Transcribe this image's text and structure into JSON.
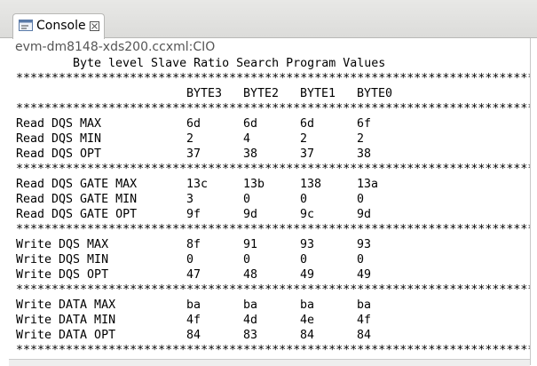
{
  "tab": {
    "title": "Console"
  },
  "console_name": "evm-dm8148-xds200.ccxml:CIO",
  "output": {
    "title": "Byte level Slave Ratio Search Program Values",
    "separator": "*************************************************************************",
    "columns": [
      "BYTE3",
      "BYTE2",
      "BYTE1",
      "BYTE0"
    ],
    "groups": [
      {
        "rows": [
          {
            "label": "Read DQS MAX",
            "values": [
              "6d",
              "6d",
              "6d",
              "6f"
            ]
          },
          {
            "label": "Read DQS MIN",
            "values": [
              "2",
              "4",
              "2",
              "2"
            ]
          },
          {
            "label": "Read DQS OPT",
            "values": [
              "37",
              "38",
              "37",
              "38"
            ]
          }
        ]
      },
      {
        "rows": [
          {
            "label": "Read DQS GATE MAX",
            "values": [
              "13c",
              "13b",
              "138",
              "13a"
            ]
          },
          {
            "label": "Read DQS GATE MIN",
            "values": [
              "3",
              "0",
              "0",
              "0"
            ]
          },
          {
            "label": "Read DQS GATE OPT",
            "values": [
              "9f",
              "9d",
              "9c",
              "9d"
            ]
          }
        ]
      },
      {
        "rows": [
          {
            "label": "Write DQS MAX",
            "values": [
              "8f",
              "91",
              "93",
              "93"
            ]
          },
          {
            "label": "Write DQS MIN",
            "values": [
              "0",
              "0",
              "0",
              "0"
            ]
          },
          {
            "label": "Write DQS OPT",
            "values": [
              "47",
              "48",
              "49",
              "49"
            ]
          }
        ]
      },
      {
        "rows": [
          {
            "label": "Write DATA MAX",
            "values": [
              "ba",
              "ba",
              "ba",
              "ba"
            ]
          },
          {
            "label": "Write DATA MIN",
            "values": [
              "4f",
              "4d",
              "4e",
              "4f"
            ]
          },
          {
            "label": "Write DATA OPT",
            "values": [
              "84",
              "83",
              "84",
              "84"
            ]
          }
        ]
      }
    ]
  }
}
